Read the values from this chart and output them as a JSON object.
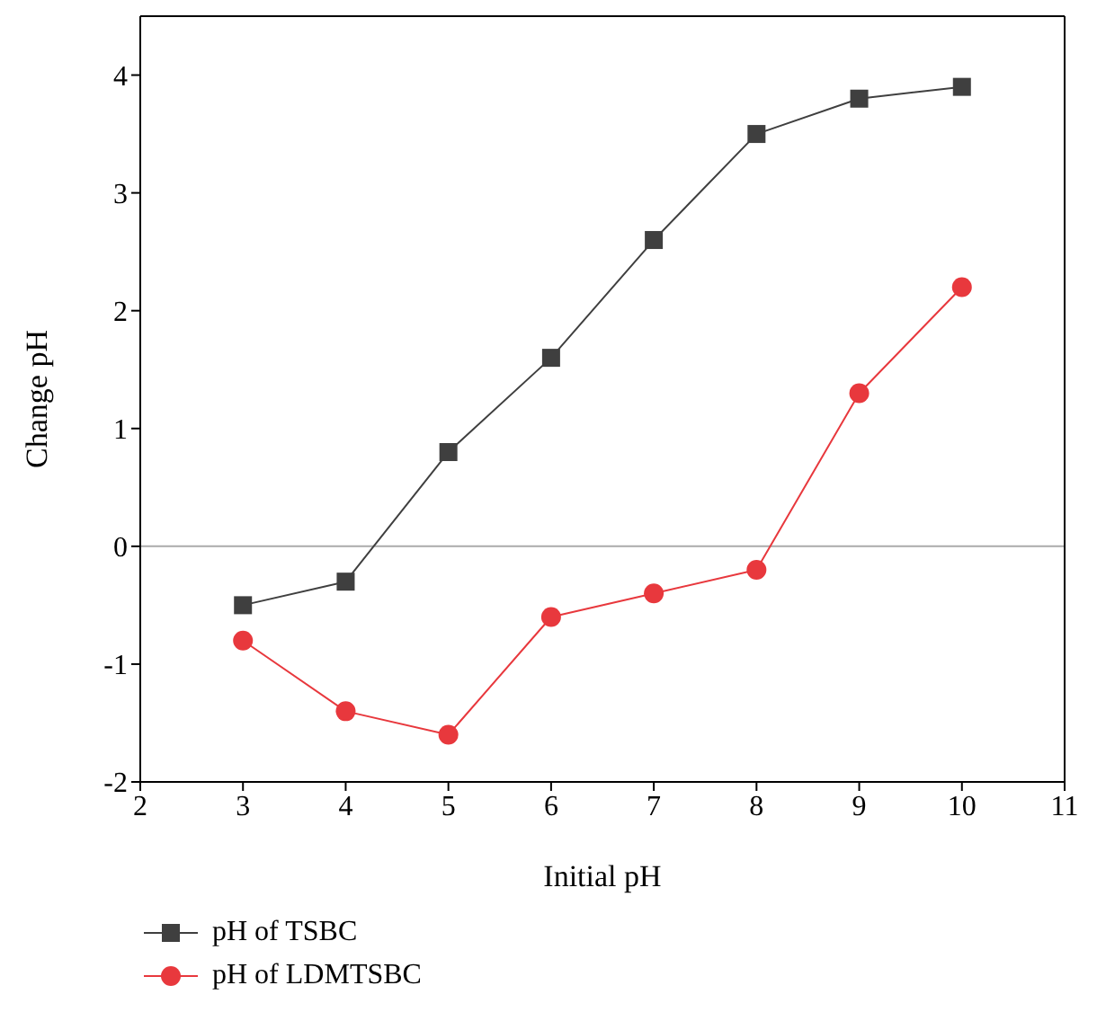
{
  "chart_data": {
    "type": "line",
    "xlabel": "Initial pH",
    "ylabel": "Change pH",
    "x": [
      3,
      4,
      5,
      6,
      7,
      8,
      9,
      10
    ],
    "series": [
      {
        "name": "pH of TSBC",
        "color": "#3f3f3f",
        "marker": "square",
        "values": [
          -0.5,
          -0.3,
          0.8,
          1.6,
          2.6,
          3.5,
          3.8,
          3.9
        ]
      },
      {
        "name": "pH of LDMTSBC",
        "color": "#e8383d",
        "marker": "circle",
        "values": [
          -0.8,
          -1.4,
          -1.6,
          -0.6,
          -0.4,
          -0.2,
          1.3,
          2.2
        ]
      }
    ],
    "xlim": [
      2,
      11
    ],
    "xticks": [
      2,
      3,
      4,
      5,
      6,
      7,
      8,
      9,
      10,
      11
    ],
    "ylim": [
      -2,
      4.5
    ],
    "yticks": [
      -2,
      -1,
      0,
      1,
      2,
      3,
      4
    ],
    "ref_lines": [
      {
        "axis": "y",
        "value": 0,
        "color": "#aaaaaa"
      }
    ],
    "grid": false,
    "legend": "bottom left"
  }
}
